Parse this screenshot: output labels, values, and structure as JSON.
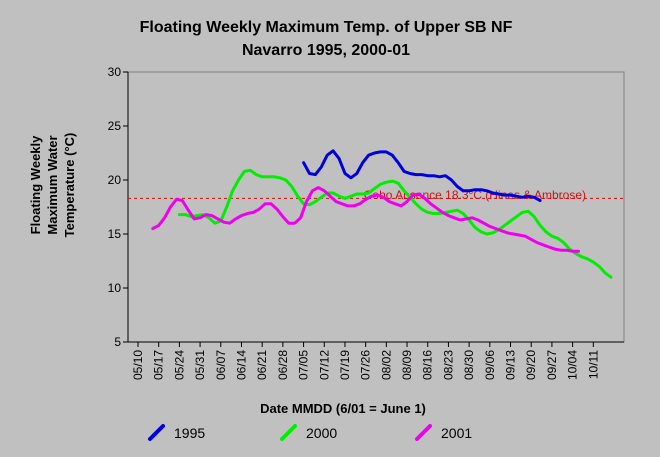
{
  "chart_data": {
    "type": "line",
    "title": "Floating Weekly Maximum Temp. of Upper SB NF",
    "subtitle": "Navarro 1995, 2000-01",
    "xlabel": "Date MMDD (6/01 = June 1)",
    "ylabel_lines": [
      "Floating Weekly",
      "Maximum Water",
      "Temperature (°C)"
    ],
    "ylim": [
      5,
      30
    ],
    "yticks": [
      5,
      10,
      15,
      20,
      25,
      30
    ],
    "xticks": [
      "05/10",
      "05/17",
      "05/24",
      "05/31",
      "06/07",
      "06/14",
      "06/21",
      "06/28",
      "07/05",
      "07/12",
      "07/19",
      "07/26",
      "08/02",
      "08/09",
      "08/16",
      "08/23",
      "08/30",
      "09/06",
      "09/13",
      "09/20",
      "09/27",
      "10/04",
      "10/11"
    ],
    "x_days_range": [
      0,
      161
    ],
    "grid": false,
    "legend_position": "bottom",
    "reference_line": {
      "value": 18.3,
      "label": "Coho Absence 18.3°C (Hines & Ambrose)",
      "color": "#d01010"
    },
    "series": [
      {
        "name": "1995",
        "color": "#0000dd",
        "x": [
          "07/05",
          "07/07",
          "07/09",
          "07/11",
          "07/13",
          "07/15",
          "07/17",
          "07/19",
          "07/21",
          "07/23",
          "07/25",
          "07/27",
          "07/29",
          "07/31",
          "08/02",
          "08/04",
          "08/06",
          "08/08",
          "08/10",
          "08/12",
          "08/14",
          "08/16",
          "08/18",
          "08/20",
          "08/22",
          "08/24",
          "08/26",
          "08/28",
          "08/30",
          "09/01",
          "09/03",
          "09/05",
          "09/07",
          "09/09",
          "09/11",
          "09/13",
          "09/15",
          "09/17",
          "09/19",
          "09/21",
          "09/23"
        ],
        "y": [
          21.6,
          20.6,
          20.5,
          21.2,
          22.3,
          22.7,
          22.0,
          20.6,
          20.2,
          20.6,
          21.6,
          22.3,
          22.5,
          22.6,
          22.6,
          22.3,
          21.6,
          20.8,
          20.6,
          20.5,
          20.5,
          20.4,
          20.4,
          20.3,
          20.4,
          20.0,
          19.4,
          19.0,
          19.0,
          19.1,
          19.1,
          19.0,
          18.8,
          18.7,
          18.6,
          18.6,
          18.5,
          18.4,
          18.5,
          18.4,
          18.1
        ]
      },
      {
        "name": "2000",
        "color": "#00ee00",
        "x": [
          "05/24",
          "05/26",
          "05/28",
          "05/30",
          "06/01",
          "06/03",
          "06/05",
          "06/07",
          "06/09",
          "06/11",
          "06/13",
          "06/15",
          "06/17",
          "06/19",
          "06/21",
          "06/23",
          "06/25",
          "06/27",
          "06/29",
          "07/01",
          "07/03",
          "07/05",
          "07/07",
          "07/09",
          "07/11",
          "07/13",
          "07/15",
          "07/17",
          "07/19",
          "07/21",
          "07/23",
          "07/25",
          "07/27",
          "07/29",
          "07/31",
          "08/02",
          "08/04",
          "08/06",
          "08/08",
          "08/10",
          "08/12",
          "08/14",
          "08/16",
          "08/18",
          "08/20",
          "08/22",
          "08/24",
          "08/26",
          "08/28",
          "08/30",
          "09/01",
          "09/03",
          "09/05",
          "09/07",
          "09/09",
          "09/11",
          "09/13",
          "09/15",
          "09/17",
          "09/19",
          "09/21",
          "09/23",
          "09/25",
          "09/27",
          "09/29",
          "10/01",
          "10/03",
          "10/05",
          "10/07",
          "10/09",
          "10/11",
          "10/13",
          "10/15",
          "10/17"
        ],
        "y": [
          16.8,
          16.8,
          16.6,
          16.7,
          16.8,
          16.5,
          16.0,
          16.2,
          17.5,
          19.0,
          20.0,
          20.8,
          20.9,
          20.5,
          20.3,
          20.3,
          20.3,
          20.2,
          20.0,
          19.4,
          18.5,
          17.8,
          17.7,
          18.0,
          18.4,
          18.8,
          18.8,
          18.5,
          18.3,
          18.5,
          18.7,
          18.7,
          18.8,
          19.2,
          19.6,
          19.8,
          19.9,
          19.7,
          19.0,
          18.4,
          17.8,
          17.3,
          17.0,
          16.9,
          16.9,
          17.0,
          17.1,
          17.2,
          16.9,
          16.3,
          15.6,
          15.2,
          15.0,
          15.1,
          15.4,
          15.8,
          16.2,
          16.6,
          17.0,
          17.1,
          16.6,
          15.8,
          15.2,
          14.8,
          14.6,
          14.2,
          13.6,
          13.2,
          12.9,
          12.7,
          12.4,
          12.0,
          11.4,
          11.0
        ]
      },
      {
        "name": "2001",
        "color": "#ee00ee",
        "x": [
          "05/15",
          "05/17",
          "05/19",
          "05/21",
          "05/23",
          "05/25",
          "05/27",
          "05/29",
          "05/31",
          "06/02",
          "06/04",
          "06/06",
          "06/08",
          "06/10",
          "06/12",
          "06/14",
          "06/16",
          "06/18",
          "06/20",
          "06/22",
          "06/24",
          "06/26",
          "06/28",
          "06/30",
          "07/02",
          "07/04",
          "07/06",
          "07/08",
          "07/10",
          "07/12",
          "07/14",
          "07/16",
          "07/18",
          "07/20",
          "07/22",
          "07/24",
          "07/26",
          "07/28",
          "07/30",
          "08/01",
          "08/03",
          "08/05",
          "08/07",
          "08/09",
          "08/11",
          "08/13",
          "08/15",
          "08/17",
          "08/19",
          "08/21",
          "08/23",
          "08/25",
          "08/27",
          "08/29",
          "08/31",
          "09/02",
          "09/04",
          "09/06",
          "09/08",
          "09/10",
          "09/12",
          "09/14",
          "09/16",
          "09/18",
          "09/20",
          "09/22",
          "09/24",
          "09/26",
          "09/28",
          "09/30",
          "10/02",
          "10/04",
          "10/06"
        ],
        "y": [
          15.5,
          15.8,
          16.5,
          17.5,
          18.2,
          18.1,
          17.2,
          16.4,
          16.5,
          16.8,
          16.7,
          16.4,
          16.1,
          16.0,
          16.4,
          16.7,
          16.9,
          17.0,
          17.3,
          17.8,
          17.8,
          17.3,
          16.6,
          16.0,
          16.0,
          16.5,
          18.0,
          19.0,
          19.3,
          19.0,
          18.5,
          18.0,
          17.8,
          17.6,
          17.6,
          17.8,
          18.2,
          18.5,
          18.6,
          18.4,
          18.0,
          17.8,
          17.6,
          18.0,
          18.6,
          18.7,
          18.3,
          17.8,
          17.4,
          17.0,
          16.7,
          16.5,
          16.3,
          16.4,
          16.5,
          16.3,
          16.0,
          15.7,
          15.5,
          15.3,
          15.1,
          15.0,
          14.9,
          14.8,
          14.5,
          14.2,
          14.0,
          13.8,
          13.6,
          13.5,
          13.5,
          13.4,
          13.4
        ]
      }
    ]
  }
}
